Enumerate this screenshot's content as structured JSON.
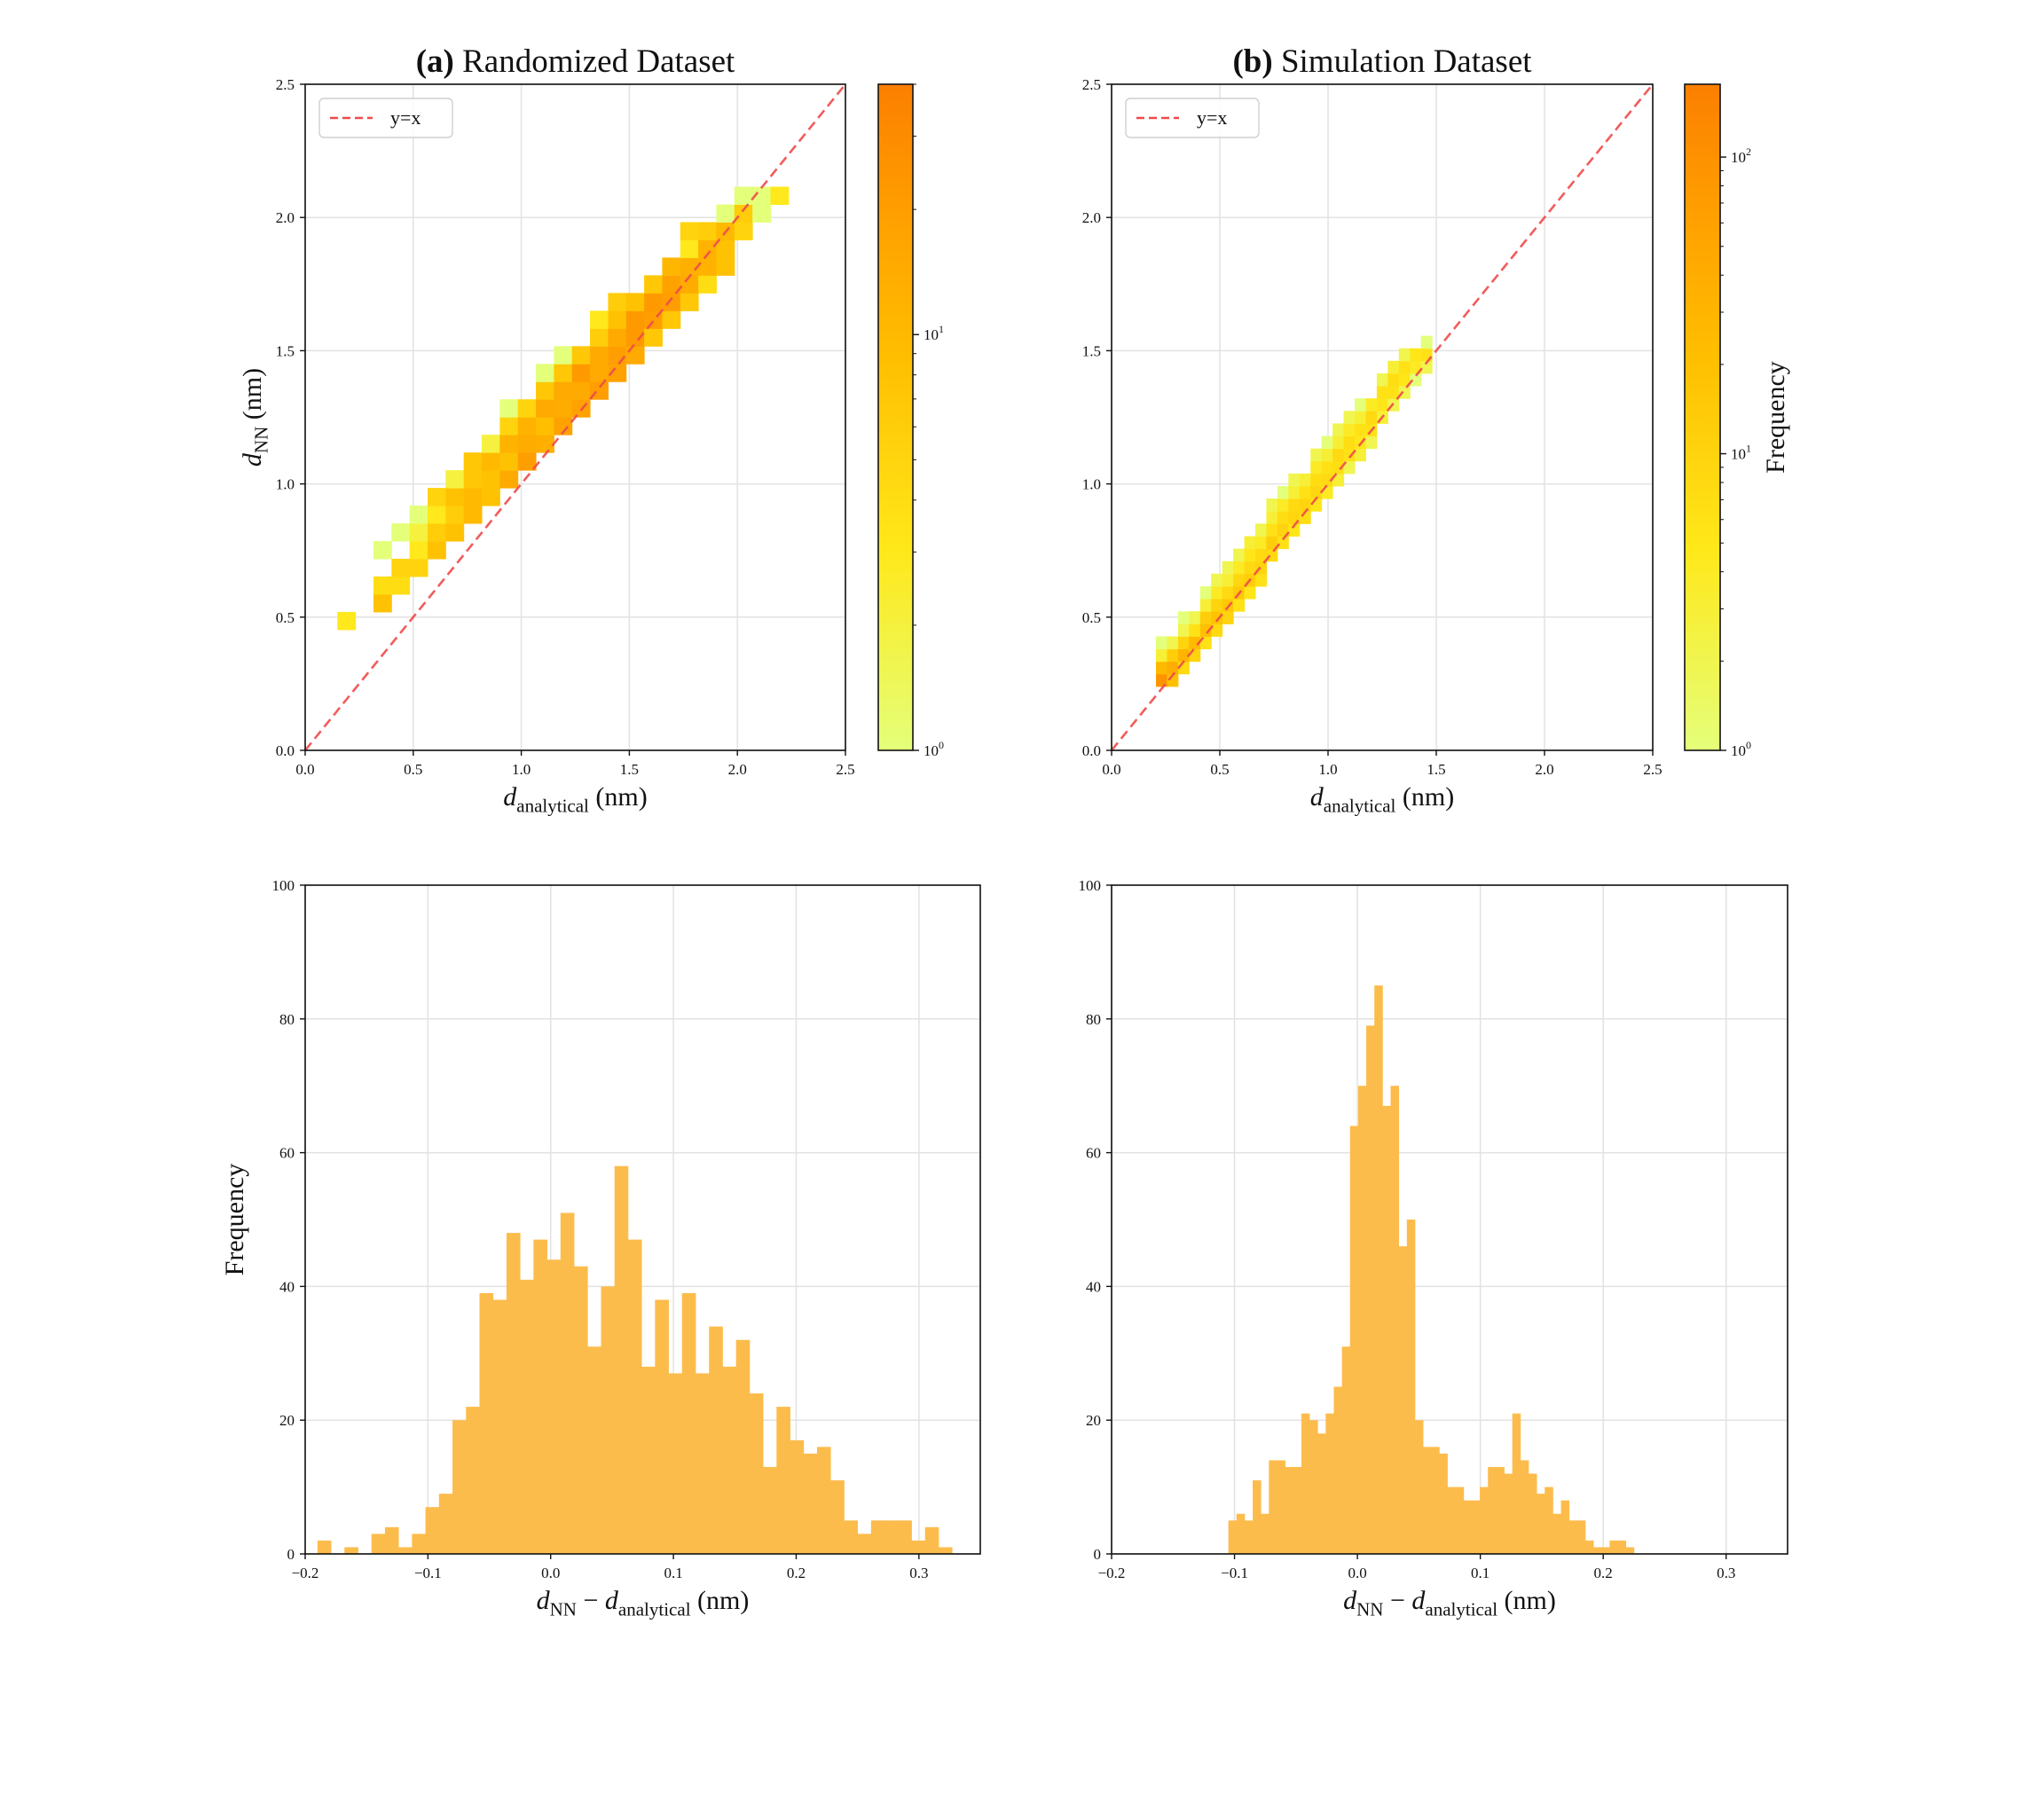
{
  "chart_data": [
    {
      "id": "a_top",
      "type": "heatmap",
      "title_tag": "(a)",
      "title": "Randomized Dataset",
      "xlabel": {
        "main": "d",
        "sub": "analytical",
        "unit": " (nm)"
      },
      "ylabel": {
        "main": "d",
        "sub": "NN",
        "unit": " (nm)"
      },
      "xlim": [
        0,
        2.5
      ],
      "ylim": [
        0,
        2.5
      ],
      "xticks": [
        "0.0",
        "0.5",
        "1.0",
        "1.5",
        "2.0",
        "2.5"
      ],
      "yticks": [
        "0.0",
        "0.5",
        "1.0",
        "1.5",
        "2.0",
        "2.5"
      ],
      "grid": true,
      "legend": {
        "label": "y=x",
        "placement": "top-left"
      },
      "reference_line": {
        "label": "y=x",
        "color": "#f04a4a",
        "style": "dashed"
      },
      "bins": {
        "x0": 0.149,
        "dx": 0.0835,
        "y0": 0.453,
        "dy": 0.0665
      },
      "columns": [
        [
          0,
          [
            3
          ]
        ],
        [
          1,
          []
        ],
        [
          2,
          [
            0,
            8,
            4,
            0,
            1
          ]
        ],
        [
          3,
          [
            0,
            0,
            4,
            5,
            0,
            1
          ]
        ],
        [
          4,
          [
            0,
            0,
            0,
            5,
            3,
            2,
            1
          ]
        ],
        [
          5,
          [
            0,
            0,
            0,
            0,
            8,
            6,
            3,
            5
          ]
        ],
        [
          6,
          [
            0,
            0,
            0,
            0,
            0,
            8,
            6,
            8,
            2
          ]
        ],
        [
          7,
          [
            0,
            0,
            0,
            0,
            0,
            0,
            10,
            10,
            7,
            7
          ]
        ],
        [
          8,
          [
            0,
            0,
            0,
            0,
            0,
            0,
            0,
            8,
            8,
            10,
            2
          ]
        ],
        [
          9,
          [
            0,
            0,
            0,
            0,
            0,
            0,
            0,
            0,
            15,
            8,
            12,
            5,
            1
          ]
        ],
        [
          10,
          [
            0,
            0,
            0,
            0,
            0,
            0,
            0,
            0,
            0,
            20,
            14,
            12,
            5
          ]
        ],
        [
          11,
          [
            0,
            0,
            0,
            0,
            0,
            0,
            0,
            0,
            0,
            0,
            13,
            9,
            15,
            7,
            1
          ]
        ],
        [
          12,
          [
            0,
            0,
            0,
            0,
            0,
            0,
            0,
            0,
            0,
            0,
            0,
            18,
            14,
            15,
            7,
            1
          ]
        ],
        [
          13,
          [
            0,
            0,
            0,
            0,
            0,
            0,
            0,
            0,
            0,
            0,
            0,
            0,
            18,
            15,
            22,
            7
          ]
        ],
        [
          14,
          [
            0,
            0,
            0,
            0,
            0,
            0,
            0,
            0,
            0,
            0,
            0,
            0,
            0,
            20,
            15,
            15,
            6,
            3
          ]
        ],
        [
          15,
          [
            0,
            0,
            0,
            0,
            0,
            0,
            0,
            0,
            0,
            0,
            0,
            0,
            0,
            0,
            18,
            20,
            15,
            8,
            6
          ]
        ],
        [
          16,
          [
            0,
            0,
            0,
            0,
            0,
            0,
            0,
            0,
            0,
            0,
            0,
            0,
            0,
            0,
            0,
            15,
            22,
            22,
            8
          ]
        ],
        [
          17,
          [
            0,
            0,
            0,
            0,
            0,
            0,
            0,
            0,
            0,
            0,
            0,
            0,
            0,
            0,
            0,
            0,
            7,
            20,
            22,
            7
          ]
        ],
        [
          18,
          [
            0,
            0,
            0,
            0,
            0,
            0,
            0,
            0,
            0,
            0,
            0,
            0,
            0,
            0,
            0,
            0,
            0,
            7,
            20,
            18,
            11
          ]
        ],
        [
          19,
          [
            0,
            0,
            0,
            0,
            0,
            0,
            0,
            0,
            0,
            0,
            0,
            0,
            0,
            0,
            0,
            0,
            0,
            0,
            7,
            14,
            13,
            3,
            5
          ]
        ],
        [
          20,
          [
            0,
            0,
            0,
            0,
            0,
            0,
            0,
            0,
            0,
            0,
            0,
            0,
            0,
            0,
            0,
            0,
            0,
            0,
            0,
            4,
            12,
            12,
            6
          ]
        ],
        [
          21,
          [
            0,
            0,
            0,
            0,
            0,
            0,
            0,
            0,
            0,
            0,
            0,
            0,
            0,
            0,
            0,
            0,
            0,
            0,
            0,
            0,
            8,
            8,
            10,
            1
          ]
        ],
        [
          22,
          [
            0,
            0,
            0,
            0,
            0,
            0,
            0,
            0,
            0,
            0,
            0,
            0,
            0,
            0,
            0,
            0,
            0,
            0,
            0,
            0,
            0,
            0,
            5,
            6,
            1
          ]
        ],
        [
          23,
          [
            0,
            0,
            0,
            0,
            0,
            0,
            0,
            0,
            0,
            0,
            0,
            0,
            0,
            0,
            0,
            0,
            0,
            0,
            0,
            0,
            0,
            0,
            0,
            1,
            1
          ]
        ],
        [
          24,
          [
            0,
            0,
            0,
            0,
            0,
            0,
            0,
            0,
            0,
            0,
            0,
            0,
            0,
            0,
            0,
            0,
            0,
            0,
            0,
            0,
            0,
            0,
            0,
            0,
            3
          ]
        ]
      ],
      "colorbar": {
        "scale": "log",
        "min": 1,
        "max": 40,
        "ticks": [
          {
            "base": "10",
            "exp": "0",
            "value": 1
          },
          {
            "base": "10",
            "exp": "1",
            "value": 10
          }
        ],
        "label": ""
      }
    },
    {
      "id": "b_top",
      "type": "heatmap",
      "title_tag": "(b)",
      "title": "Simulation Dataset",
      "xlabel": {
        "main": "d",
        "sub": "analytical",
        "unit": " (nm)"
      },
      "ylabel": null,
      "xlim": [
        0,
        2.5
      ],
      "ylim": [
        0,
        2.5
      ],
      "xticks": [
        "0.0",
        "0.5",
        "1.0",
        "1.5",
        "2.0",
        "2.5"
      ],
      "yticks": [
        "0.0",
        "0.5",
        "1.0",
        "1.5",
        "2.0",
        "2.5"
      ],
      "grid": true,
      "legend": {
        "label": "y=x",
        "placement": "top-left"
      },
      "reference_line": {
        "label": "y=x",
        "color": "#f04a4a",
        "style": "dashed"
      },
      "bins": {
        "x0": 0.205,
        "dx": 0.051,
        "y0": 0.24,
        "dy": 0.047
      },
      "columns_sparse": [
        [
          0,
          0,
          [
            90,
            25,
            3,
            1
          ]
        ],
        [
          1,
          0,
          [
            20,
            40,
            12,
            2
          ]
        ],
        [
          2,
          1,
          [
            8,
            30,
            10,
            2,
            1
          ]
        ],
        [
          3,
          2,
          [
            10,
            25,
            6,
            2
          ]
        ],
        [
          4,
          3,
          [
            6,
            20,
            12,
            3,
            1
          ]
        ],
        [
          5,
          4,
          [
            8,
            18,
            10,
            4,
            2
          ]
        ],
        [
          6,
          5,
          [
            10,
            15,
            8,
            3,
            2
          ]
        ],
        [
          7,
          6,
          [
            6,
            14,
            9,
            4,
            2
          ]
        ],
        [
          8,
          7,
          [
            5,
            12,
            8,
            5,
            3
          ]
        ],
        [
          9,
          8,
          [
            6,
            10,
            8,
            4,
            2
          ]
        ],
        [
          10,
          10,
          [
            8,
            12,
            6,
            3,
            2
          ]
        ],
        [
          11,
          11,
          [
            6,
            10,
            7,
            4,
            1
          ]
        ],
        [
          12,
          12,
          [
            5,
            9,
            8,
            3,
            2
          ]
        ],
        [
          13,
          13,
          [
            7,
            10,
            6,
            3
          ]
        ],
        [
          14,
          14,
          [
            5,
            9,
            7,
            4,
            2
          ]
        ],
        [
          15,
          15,
          [
            4,
            8,
            6,
            3,
            1
          ]
        ],
        [
          16,
          16,
          [
            3,
            7,
            8,
            3,
            2
          ]
        ],
        [
          17,
          17,
          [
            2,
            6,
            7,
            4,
            2
          ]
        ],
        [
          18,
          18,
          [
            3,
            5,
            6,
            3,
            1
          ]
        ],
        [
          19,
          19,
          [
            2,
            6,
            8,
            4
          ]
        ],
        [
          20,
          21,
          [
            3,
            5,
            6,
            2
          ]
        ],
        [
          21,
          22,
          [
            2,
            6,
            7,
            3
          ]
        ],
        [
          22,
          23,
          [
            2,
            5,
            6,
            2
          ]
        ],
        [
          23,
          24,
          [
            1,
            4,
            5
          ]
        ],
        [
          24,
          25,
          [
            2,
            6,
            1
          ]
        ]
      ],
      "colorbar": {
        "scale": "log",
        "min": 1,
        "max": 176,
        "ticks": [
          {
            "base": "10",
            "exp": "0",
            "value": 1
          },
          {
            "base": "10",
            "exp": "1",
            "value": 10
          },
          {
            "base": "10",
            "exp": "2",
            "value": 100
          }
        ],
        "label": "Frequency"
      }
    },
    {
      "id": "a_bottom",
      "type": "bar",
      "xlabel": {
        "main": "d",
        "sub": "NN",
        "mid": " − d",
        "sub2": "analytical",
        "unit": " (nm)"
      },
      "ylabel": "Frequency",
      "xlim": [
        -0.2,
        0.35
      ],
      "ylim": [
        0,
        100
      ],
      "xticks": [
        {
          "v": -0.2,
          "t": "−0.2"
        },
        {
          "v": -0.1,
          "t": "−0.1"
        },
        {
          "v": 0,
          "t": "0.0"
        },
        {
          "v": 0.1,
          "t": "0.1"
        },
        {
          "v": 0.2,
          "t": "0.2"
        },
        {
          "v": 0.3,
          "t": "0.3"
        }
      ],
      "yticks": [
        0,
        20,
        40,
        60,
        80,
        100
      ],
      "grid": true,
      "bin_start": -0.19,
      "bin_width": 0.011,
      "values": [
        2,
        0,
        1,
        0,
        3,
        4,
        1,
        3,
        7,
        9,
        20,
        22,
        39,
        38,
        48,
        41,
        47,
        44,
        51,
        43,
        31,
        40,
        58,
        47,
        28,
        38,
        27,
        39,
        27,
        34,
        28,
        32,
        24,
        13,
        22,
        17,
        15,
        16,
        11,
        5,
        3,
        5,
        5,
        5,
        2,
        4,
        1
      ],
      "color": "#fcbc4c"
    },
    {
      "id": "b_bottom",
      "type": "bar",
      "xlabel": {
        "main": "d",
        "sub": "NN",
        "mid": " − d",
        "sub2": "analytical",
        "unit": " (nm)"
      },
      "ylabel": "",
      "xlim": [
        -0.2,
        0.35
      ],
      "ylim": [
        0,
        100
      ],
      "xticks": [
        {
          "v": -0.2,
          "t": "−0.2"
        },
        {
          "v": -0.1,
          "t": "−0.1"
        },
        {
          "v": 0,
          "t": "0.0"
        },
        {
          "v": 0.1,
          "t": "0.1"
        },
        {
          "v": 0.2,
          "t": "0.2"
        },
        {
          "v": 0.3,
          "t": "0.3"
        }
      ],
      "yticks": [
        0,
        20,
        40,
        60,
        80,
        100
      ],
      "grid": true,
      "bin_start": -0.105,
      "bin_width": 0.0066,
      "values": [
        5,
        6,
        5,
        11,
        6,
        14,
        14,
        13,
        13,
        21,
        20,
        18,
        21,
        25,
        31,
        64,
        70,
        79,
        85,
        67,
        70,
        46,
        50,
        20,
        16,
        16,
        15,
        10,
        10,
        8,
        8,
        10,
        13,
        13,
        12,
        21,
        14,
        12,
        9,
        10,
        6,
        8,
        5,
        5,
        2,
        1,
        1,
        2,
        2,
        1
      ],
      "color": "#fcbc4c"
    }
  ]
}
